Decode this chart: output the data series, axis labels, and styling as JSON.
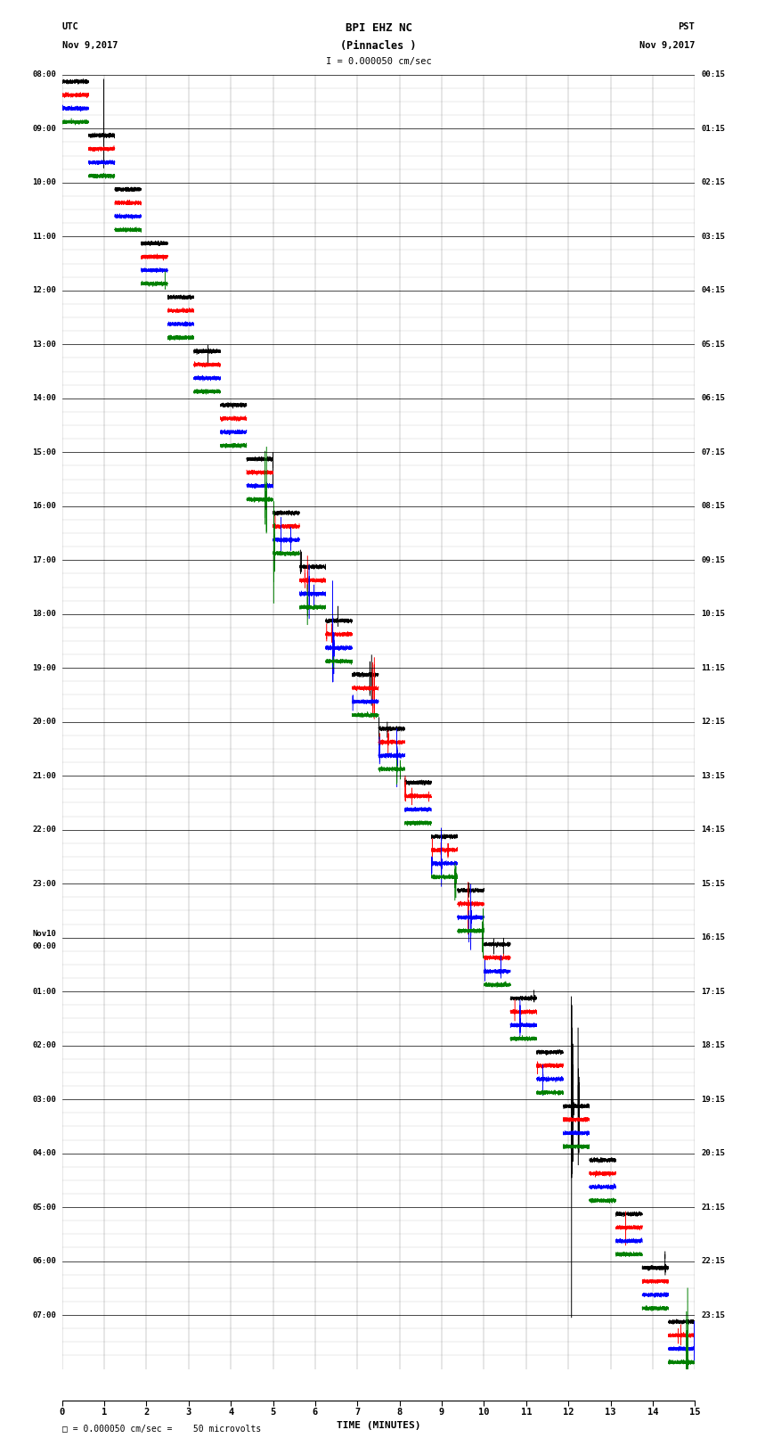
{
  "title_line1": "BPI EHZ NC",
  "title_line2": "(Pinnacles )",
  "scale_label": "I = 0.000050 cm/sec",
  "left_label_top": "UTC",
  "left_label_date": "Nov 9,2017",
  "right_label_top": "PST",
  "right_label_date": "Nov 9,2017",
  "bottom_label": "TIME (MINUTES)",
  "footer_label": "= 0.000050 cm/sec =    50 microvolts",
  "utc_times": [
    "08:00",
    "09:00",
    "10:00",
    "11:00",
    "12:00",
    "13:00",
    "14:00",
    "15:00",
    "16:00",
    "17:00",
    "18:00",
    "19:00",
    "20:00",
    "21:00",
    "22:00",
    "23:00",
    "Nov10\n00:00",
    "01:00",
    "02:00",
    "03:00",
    "04:00",
    "05:00",
    "06:00",
    "07:00"
  ],
  "pst_times": [
    "00:15",
    "01:15",
    "02:15",
    "03:15",
    "04:15",
    "05:15",
    "06:15",
    "07:15",
    "08:15",
    "09:15",
    "10:15",
    "11:15",
    "12:15",
    "13:15",
    "14:15",
    "15:15",
    "16:15",
    "17:15",
    "18:15",
    "19:15",
    "20:15",
    "21:15",
    "22:15",
    "23:15"
  ],
  "n_rows": 24,
  "n_traces_per_row": 4,
  "colors": [
    "black",
    "red",
    "blue",
    "green"
  ],
  "bg_color": "#ffffff",
  "grid_color": "#aaaaaa",
  "noise_scale": 0.12,
  "figsize": [
    8.5,
    16.13
  ],
  "dpi": 100,
  "lw": 0.35
}
